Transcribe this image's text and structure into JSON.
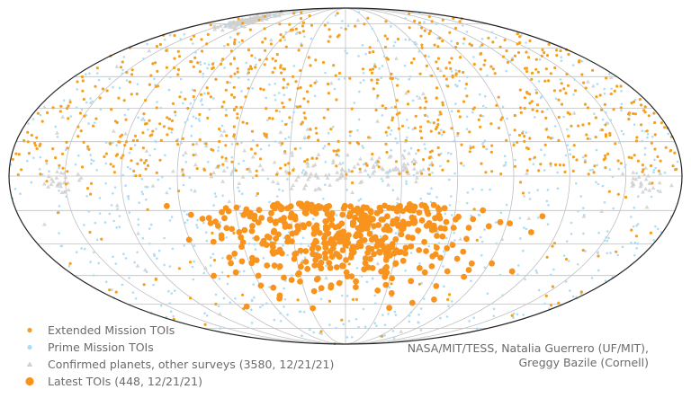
{
  "chart_data": {
    "type": "scatter",
    "projection": "Mollweide",
    "grid": true,
    "legend_position": "bottom-left",
    "colors": {
      "extended": "#f5a020",
      "prime": "#aedcf5",
      "confirmed": "#cfcfcf",
      "latest": "#f8941d",
      "grid": "#c0c0c0",
      "outline": "#222222"
    },
    "series": [
      {
        "key": "extended",
        "name": "Extended Mission TOIs",
        "marker": "circle-small"
      },
      {
        "key": "prime",
        "name": "Prime Mission TOIs",
        "marker": "circle-small"
      },
      {
        "key": "confirmed",
        "name": "Confirmed planets, other surveys (3580, 12/21/21)",
        "marker": "triangle"
      },
      {
        "key": "latest",
        "name": "Latest TOIs (448, 12/21/21)",
        "marker": "circle-large"
      }
    ],
    "credit_lines": [
      "NASA/MIT/TESS, Natalia Guerrero (UF/MIT),",
      "Greggy Bazile (Cornell)"
    ]
  }
}
